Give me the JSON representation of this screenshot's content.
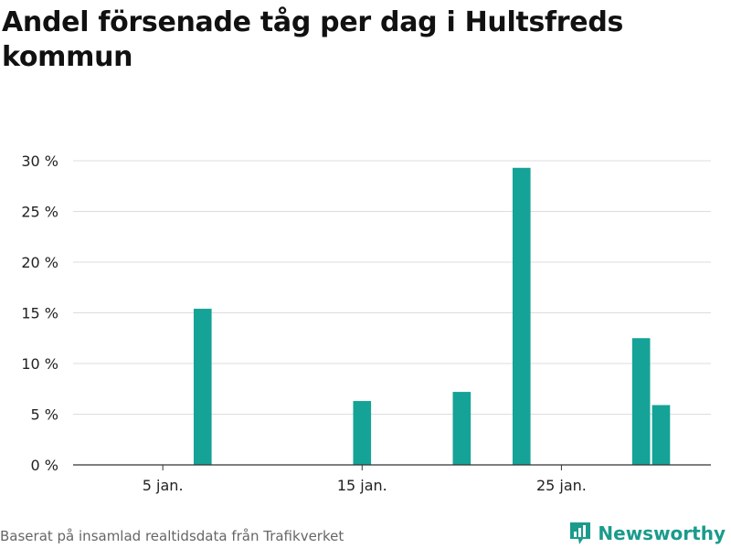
{
  "title": "Andel försenade tåg per dag i Hultsfreds kommun",
  "footer": {
    "source": "Baserat på insamlad realtidsdata från Trafikverket",
    "brand": "Newsworthy",
    "brand_icon": "newsworthy-logo-icon"
  },
  "colors": {
    "bar": "#14a396",
    "grid": "#dddddd",
    "axis": "#333333",
    "brand": "#1a9b8c"
  },
  "chart_data": {
    "type": "bar",
    "title": "Andel försenade tåg per dag i Hultsfreds kommun",
    "xlabel": "",
    "ylabel": "",
    "x_unit": "day of January",
    "x_range": [
      0.5,
      32.5
    ],
    "ylim": [
      0,
      30
    ],
    "yticks": [
      0,
      5,
      10,
      15,
      20,
      25,
      30
    ],
    "ytick_labels": [
      "0 %",
      "5 %",
      "10 %",
      "15 %",
      "20 %",
      "25 %",
      "30 %"
    ],
    "xticks": [
      5,
      15,
      25
    ],
    "xtick_labels": [
      "5 jan.",
      "15 jan.",
      "25 jan."
    ],
    "grid": true,
    "legend": "none",
    "days": [
      7,
      15,
      20,
      23,
      29,
      30
    ],
    "values": [
      15.4,
      6.3,
      7.2,
      29.3,
      12.5,
      5.9
    ]
  }
}
